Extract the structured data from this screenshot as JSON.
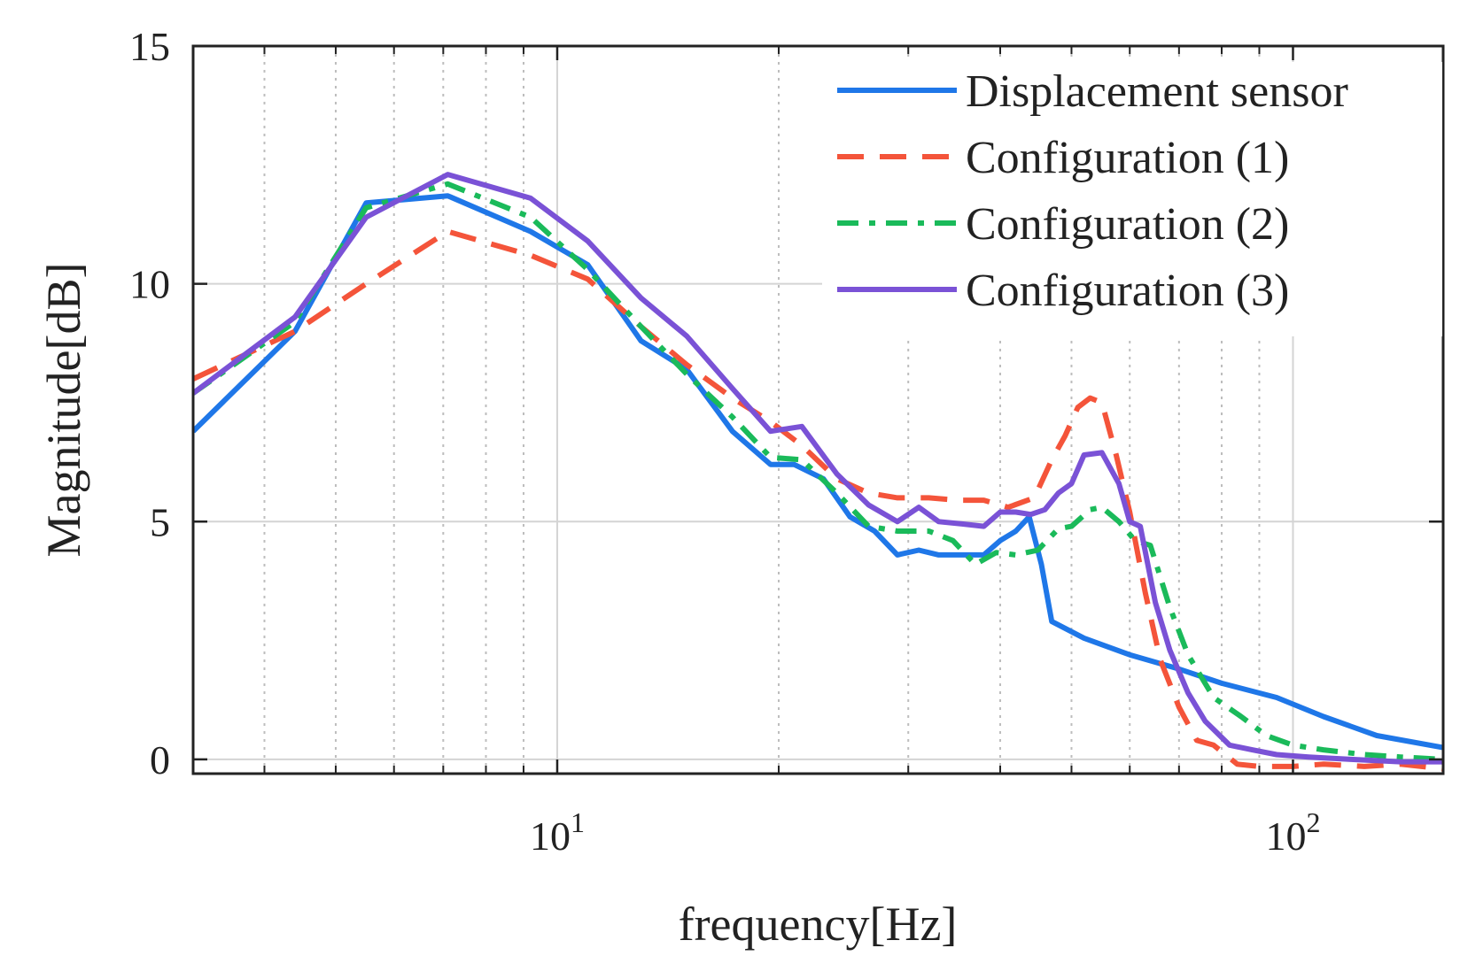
{
  "chart_data": {
    "type": "line",
    "title": "",
    "xlabel": "frequency[Hz]",
    "ylabel": "Magnitude[dB]",
    "xscale": "log",
    "xlim": [
      3.2,
      160
    ],
    "ylim": [
      -0.3,
      15
    ],
    "grid": true,
    "legend_position": "top-right",
    "x_ticks": [
      {
        "value": 10,
        "base": "10",
        "exp": "1"
      },
      {
        "value": 100,
        "base": "10",
        "exp": "2"
      }
    ],
    "y_ticks": [
      {
        "value": 0,
        "label": "0"
      },
      {
        "value": 5,
        "label": "5"
      },
      {
        "value": 10,
        "label": "10"
      },
      {
        "value": 15,
        "label": "15"
      }
    ],
    "series": [
      {
        "name": "Displacement sensor",
        "color": "#1f77e8",
        "dash": "solid",
        "points": [
          [
            3.2,
            6.9
          ],
          [
            4.4,
            9.0
          ],
          [
            5.5,
            11.7
          ],
          [
            7.1,
            11.85
          ],
          [
            9.2,
            11.1
          ],
          [
            11.0,
            10.4
          ],
          [
            13.0,
            8.8
          ],
          [
            15.0,
            8.2
          ],
          [
            17.3,
            6.9
          ],
          [
            19.5,
            6.2
          ],
          [
            21.0,
            6.2
          ],
          [
            23.0,
            5.9
          ],
          [
            25.0,
            5.1
          ],
          [
            27.0,
            4.8
          ],
          [
            29.0,
            4.3
          ],
          [
            31.0,
            4.4
          ],
          [
            33.0,
            4.3
          ],
          [
            35.5,
            4.3
          ],
          [
            38.0,
            4.3
          ],
          [
            40.0,
            4.6
          ],
          [
            42.0,
            4.8
          ],
          [
            43.8,
            5.1
          ],
          [
            45.5,
            4.1
          ],
          [
            47.0,
            2.9
          ],
          [
            52.0,
            2.55
          ],
          [
            60.0,
            2.2
          ],
          [
            70.0,
            1.9
          ],
          [
            80.0,
            1.6
          ],
          [
            95.0,
            1.3
          ],
          [
            110.0,
            0.9
          ],
          [
            130.0,
            0.5
          ],
          [
            160.0,
            0.25
          ]
        ]
      },
      {
        "name": "Configuration (1)",
        "color": "#f4543a",
        "dash": "dashed",
        "points": [
          [
            3.2,
            8.0
          ],
          [
            4.4,
            9.0
          ],
          [
            5.5,
            10.0
          ],
          [
            7.1,
            11.1
          ],
          [
            9.2,
            10.6
          ],
          [
            11.0,
            10.1
          ],
          [
            13.0,
            9.1
          ],
          [
            15.0,
            8.3
          ],
          [
            17.3,
            7.6
          ],
          [
            19.5,
            7.1
          ],
          [
            21.5,
            6.6
          ],
          [
            24.0,
            5.9
          ],
          [
            26.5,
            5.6
          ],
          [
            29.0,
            5.5
          ],
          [
            32.0,
            5.5
          ],
          [
            35.0,
            5.45
          ],
          [
            38.0,
            5.45
          ],
          [
            41.0,
            5.3
          ],
          [
            44.5,
            5.5
          ],
          [
            47.0,
            6.3
          ],
          [
            49.0,
            6.8
          ],
          [
            51.0,
            7.4
          ],
          [
            53.0,
            7.6
          ],
          [
            55.0,
            7.5
          ],
          [
            57.5,
            6.4
          ],
          [
            60.0,
            5.2
          ],
          [
            63.0,
            3.5
          ],
          [
            66.0,
            2.1
          ],
          [
            70.0,
            1.1
          ],
          [
            74.0,
            0.4
          ],
          [
            78.0,
            0.3
          ],
          [
            84.0,
            -0.1
          ],
          [
            90.0,
            -0.15
          ],
          [
            100.0,
            -0.15
          ],
          [
            110.0,
            -0.1
          ],
          [
            125.0,
            -0.15
          ],
          [
            140.0,
            -0.1
          ],
          [
            160.0,
            -0.2
          ]
        ]
      },
      {
        "name": "Configuration (2)",
        "color": "#1aba5a",
        "dash": "dashdot",
        "points": [
          [
            3.2,
            7.7
          ],
          [
            4.4,
            9.2
          ],
          [
            5.5,
            11.6
          ],
          [
            7.1,
            12.1
          ],
          [
            9.2,
            11.4
          ],
          [
            11.0,
            10.3
          ],
          [
            13.0,
            9.1
          ],
          [
            15.0,
            8.1
          ],
          [
            17.3,
            7.2
          ],
          [
            19.5,
            6.35
          ],
          [
            21.5,
            6.3
          ],
          [
            24.0,
            5.6
          ],
          [
            26.5,
            4.9
          ],
          [
            29.0,
            4.8
          ],
          [
            32.0,
            4.8
          ],
          [
            34.5,
            4.6
          ],
          [
            37.0,
            4.1
          ],
          [
            39.5,
            4.35
          ],
          [
            42.0,
            4.3
          ],
          [
            45.0,
            4.4
          ],
          [
            48.0,
            4.85
          ],
          [
            50.0,
            4.9
          ],
          [
            53.0,
            5.25
          ],
          [
            55.0,
            5.3
          ],
          [
            58.0,
            5.0
          ],
          [
            61.0,
            4.6
          ],
          [
            64.0,
            4.5
          ],
          [
            68.0,
            3.2
          ],
          [
            72.0,
            2.2
          ],
          [
            78.0,
            1.3
          ],
          [
            85.0,
            0.9
          ],
          [
            92.0,
            0.5
          ],
          [
            100.0,
            0.3
          ],
          [
            110.0,
            0.2
          ],
          [
            125.0,
            0.1
          ],
          [
            140.0,
            0.05
          ],
          [
            160.0,
            0.0
          ]
        ]
      },
      {
        "name": "Configuration (3)",
        "color": "#7a52d6",
        "dash": "solid",
        "points": [
          [
            3.2,
            7.7
          ],
          [
            4.4,
            9.3
          ],
          [
            5.5,
            11.4
          ],
          [
            7.1,
            12.3
          ],
          [
            9.2,
            11.8
          ],
          [
            11.0,
            10.9
          ],
          [
            13.0,
            9.7
          ],
          [
            15.0,
            8.9
          ],
          [
            17.3,
            7.8
          ],
          [
            19.5,
            6.9
          ],
          [
            21.5,
            7.0
          ],
          [
            24.0,
            6.0
          ],
          [
            26.5,
            5.35
          ],
          [
            29.0,
            5.0
          ],
          [
            31.0,
            5.3
          ],
          [
            33.0,
            5.0
          ],
          [
            35.5,
            4.95
          ],
          [
            38.0,
            4.9
          ],
          [
            40.0,
            5.2
          ],
          [
            42.0,
            5.2
          ],
          [
            44.0,
            5.15
          ],
          [
            46.0,
            5.25
          ],
          [
            48.0,
            5.6
          ],
          [
            50.0,
            5.8
          ],
          [
            52.0,
            6.4
          ],
          [
            55.0,
            6.45
          ],
          [
            58.0,
            5.8
          ],
          [
            60.0,
            5.0
          ],
          [
            62.0,
            4.9
          ],
          [
            65.0,
            3.3
          ],
          [
            68.0,
            2.3
          ],
          [
            72.0,
            1.4
          ],
          [
            76.0,
            0.8
          ],
          [
            82.0,
            0.3
          ],
          [
            88.0,
            0.2
          ],
          [
            95.0,
            0.1
          ],
          [
            105.0,
            0.05
          ],
          [
            120.0,
            0.0
          ],
          [
            140.0,
            -0.05
          ],
          [
            160.0,
            -0.05
          ]
        ]
      }
    ]
  }
}
